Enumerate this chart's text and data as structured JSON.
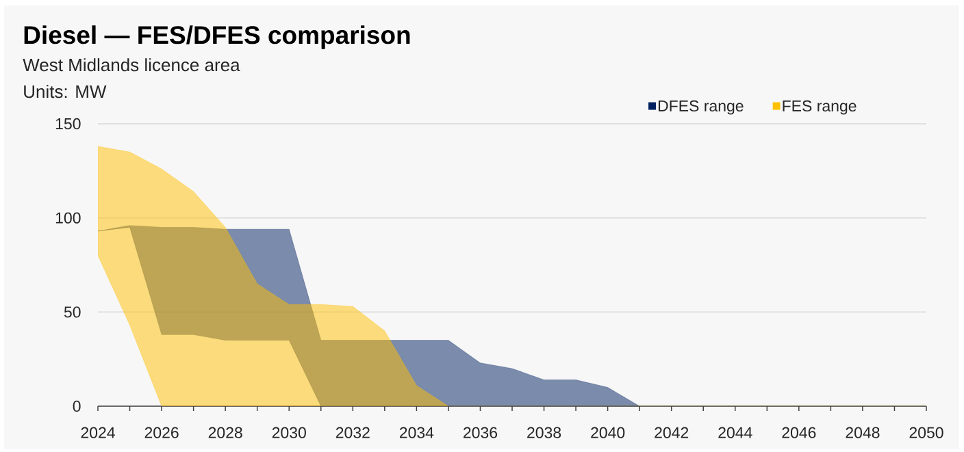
{
  "chart_data": {
    "type": "area",
    "title": "Diesel — FES/DFES comparison",
    "subtitle": "West Midlands licence area",
    "ylabel": "Units: MW",
    "x": [
      2024,
      2025,
      2026,
      2027,
      2028,
      2029,
      2030,
      2031,
      2032,
      2033,
      2034,
      2035,
      2036,
      2037,
      2038,
      2039,
      2040,
      2041,
      2042,
      2043,
      2044,
      2045,
      2046,
      2047,
      2048,
      2049,
      2050
    ],
    "series": [
      {
        "name": "DFES range",
        "color": "#002060",
        "values": [
          null,
          null,
          null,
          null,
          null,
          null,
          null,
          null,
          null,
          null,
          null,
          null,
          null,
          null,
          null,
          null,
          null,
          null,
          null,
          null,
          null,
          null,
          null,
          null,
          null,
          null,
          null
        ],
        "upper": [
          93,
          96,
          95,
          95,
          94,
          94,
          94,
          35,
          35,
          35,
          35,
          35,
          23,
          20,
          14,
          14,
          10,
          0,
          0,
          0,
          0,
          0,
          0,
          0,
          0,
          0,
          0
        ],
        "lower": [
          93,
          95,
          38,
          38,
          35,
          35,
          35,
          0,
          0,
          0,
          0,
          0,
          0,
          0,
          0,
          0,
          0,
          0,
          0,
          0,
          0,
          0,
          0,
          0,
          0,
          0,
          0
        ]
      },
      {
        "name": "FES range",
        "color": "#ffc000",
        "values": [
          null,
          null,
          null,
          null,
          null,
          null,
          null,
          null,
          null,
          null,
          null,
          null,
          null,
          null,
          null,
          null,
          null,
          null,
          null,
          null,
          null,
          null,
          null,
          null,
          null,
          null,
          null
        ],
        "upper": [
          138,
          135,
          126,
          114,
          95,
          65,
          54,
          54,
          53,
          40,
          11,
          0,
          0,
          0,
          0,
          0,
          0,
          0,
          0,
          0,
          0,
          0,
          0,
          0,
          0,
          0,
          0
        ],
        "lower": [
          80,
          43,
          0,
          0,
          0,
          0,
          0,
          0,
          0,
          0,
          0,
          0,
          0,
          0,
          0,
          0,
          0,
          0,
          0,
          0,
          0,
          0,
          0,
          0,
          0,
          0,
          0
        ]
      }
    ],
    "xlim": [
      2024,
      2050
    ],
    "ylim": [
      0,
      150
    ],
    "xticks": [
      2024,
      {
        "value": 2025,
        "label": null
      },
      2026,
      {
        "value": 2027,
        "label": null
      },
      2028,
      {
        "value": 2029,
        "label": null
      },
      2030,
      {
        "value": 2031,
        "label": null
      },
      2032,
      {
        "value": 2033,
        "label": null
      },
      2034,
      {
        "value": 2035,
        "label": null
      },
      2036,
      {
        "value": 2037,
        "label": null
      },
      2038,
      {
        "value": 2039,
        "label": null
      },
      2040,
      {
        "value": 2041,
        "label": null
      },
      2042,
      {
        "value": 2043,
        "label": null
      },
      2044,
      {
        "value": 2045,
        "label": null
      },
      2046,
      {
        "value": 2047,
        "label": null
      },
      2048,
      {
        "value": 2049,
        "label": null
      },
      2050
    ],
    "yticks": [
      0,
      50,
      100,
      150
    ],
    "grid": "y",
    "legend": "top right"
  }
}
